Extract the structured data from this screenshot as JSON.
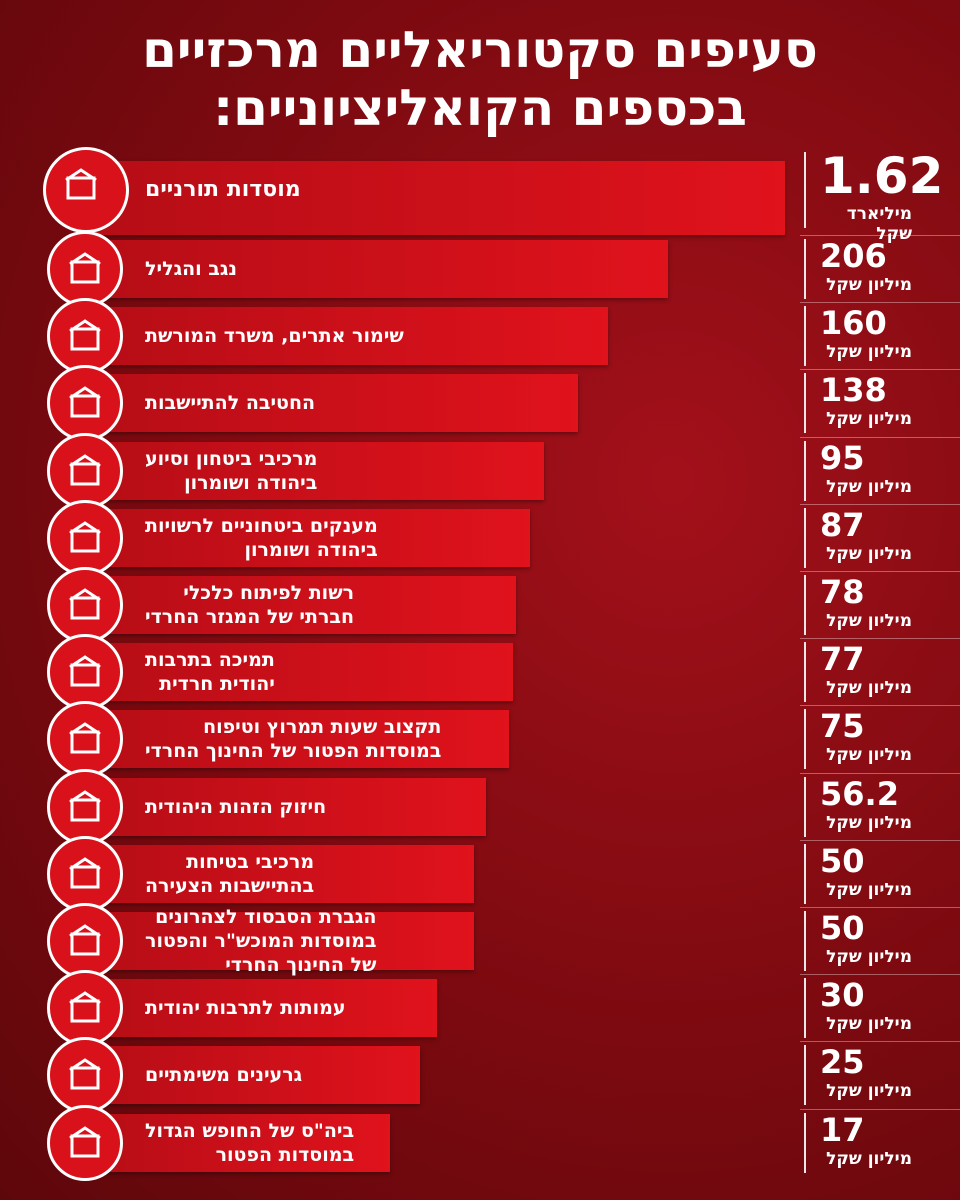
{
  "header": {
    "title": [
      "סעיפים סקטוריאליים מרכזיים",
      "בכספים הקואליציוניים:"
    ]
  },
  "items": [
    {
      "label": [
        "מוסדות תורניים"
      ],
      "amount": 1.62,
      "unit": "מיליארד שקל"
    },
    {
      "label": [
        "נגב והגליל"
      ],
      "amount": 206,
      "unit": "מיליון שקל"
    },
    {
      "label": [
        "שימור אתרים, משרד המורשת"
      ],
      "amount": 160,
      "unit": "מיליון שקל"
    },
    {
      "label": [
        "החטיבה להתיישבות"
      ],
      "amount": 138,
      "unit": "מיליון שקל"
    },
    {
      "label": [
        "מרכיבי ביטחון וסיוע",
        "ביהודה ושומרון"
      ],
      "amount": 95,
      "unit": "מיליון שקל"
    },
    {
      "label": [
        "מענקים ביטחוניים לרשויות",
        "ביהודה ושומרון"
      ],
      "amount": 87,
      "unit": "מיליון שקל"
    },
    {
      "label": [
        "רשות לפיתוח כלכלי",
        "חברתי של המגזר החרדי"
      ],
      "amount": 78,
      "unit": "מיליון שקל"
    },
    {
      "label": [
        "תמיכה בתרבות",
        "יהודית חרדית"
      ],
      "amount": 77,
      "unit": "מיליון שקל"
    },
    {
      "label": [
        "תקצוב שעות תמרוץ וטיפוח",
        "במוסדות הפטור של החינוך החרדי"
      ],
      "amount": 75,
      "unit": "מיליון שקל"
    },
    {
      "label": [
        "חיזוק הזהות היהודית"
      ],
      "amount": 56.2,
      "unit": "מיליון שקל"
    },
    {
      "label": [
        "מרכיבי בטיחות",
        "בהתיישבות הצעירה"
      ],
      "amount": 50,
      "unit": "מיליון שקל"
    },
    {
      "label": [
        "הגברת הסבסוד לצהרונים",
        "במוסדות המוכש\"ר והפטור",
        "של החינוך החרדי"
      ],
      "amount": 50,
      "unit": "מיליון שקל"
    },
    {
      "label": [
        "עמותות לתרבות יהודית"
      ],
      "amount": 30,
      "unit": "מיליון שקל"
    },
    {
      "label": [
        "גרעינים משימתיים"
      ],
      "amount": 25,
      "unit": "מיליון שקל"
    },
    {
      "label": [
        "ביה\"ס של החופש הגדול",
        "במוסדות הפטור"
      ],
      "amount": 17,
      "unit": "מיליון שקל"
    }
  ]
}
